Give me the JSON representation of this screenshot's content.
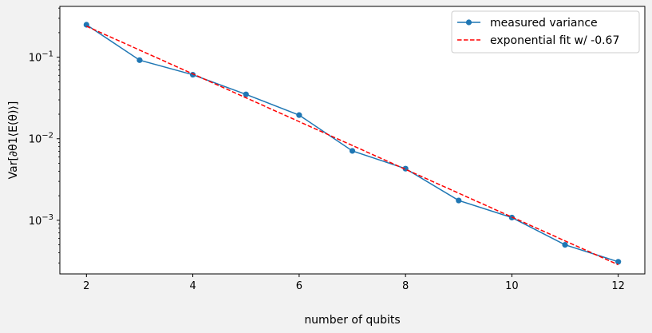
{
  "chart_data": {
    "type": "line",
    "title": "",
    "xlabel": "number of qubits",
    "ylabel": "Var[∂θ1⟨E(θ)⟩]",
    "xscale": "linear",
    "yscale": "log",
    "xlim": [
      1.5,
      12.5
    ],
    "ylim": [
      0.00022,
      0.42
    ],
    "x_ticks": [
      2,
      4,
      6,
      8,
      10,
      12
    ],
    "x_tick_labels": [
      "2",
      "4",
      "6",
      "8",
      "10",
      "12"
    ],
    "y_ticks": [
      0.001,
      0.01,
      0.1
    ],
    "y_tick_labels": [
      {
        "base": "10",
        "exp": "−3"
      },
      {
        "base": "10",
        "exp": "−2"
      },
      {
        "base": "10",
        "exp": "−1"
      }
    ],
    "grid": false,
    "legend_position": "upper right",
    "series": [
      {
        "name": "measured variance",
        "style": "solid",
        "marker": "circle",
        "color": "#1f77b4",
        "x": [
          2,
          3,
          4,
          5,
          6,
          7,
          8,
          9,
          10,
          11,
          12
        ],
        "y": [
          0.25,
          0.092,
          0.061,
          0.035,
          0.0195,
          0.0071,
          0.0043,
          0.00175,
          0.00108,
          0.0005,
          0.00031
        ]
      },
      {
        "name": "exponential fit w/ -0.67",
        "style": "dashed",
        "marker": "none",
        "color": "#ff0000",
        "x": [
          2,
          12
        ],
        "y": [
          0.24,
          0.000285
        ]
      }
    ]
  }
}
